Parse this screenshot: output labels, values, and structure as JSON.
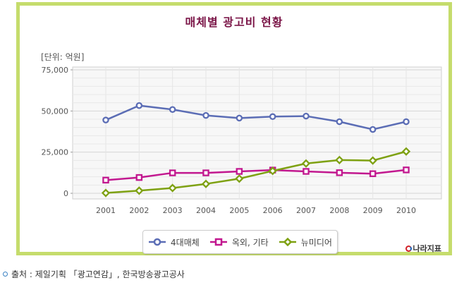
{
  "chart_data": {
    "type": "line",
    "title": "매체별 광고비 현황",
    "unit_label": "[단위: 억원]",
    "categories": [
      "2001",
      "2002",
      "2003",
      "2004",
      "2005",
      "2006",
      "2007",
      "2008",
      "2009",
      "2010"
    ],
    "y_ticks": [
      "75,000",
      "50,000",
      "25,000",
      "0"
    ],
    "ylim": [
      0,
      75000
    ],
    "grid": true,
    "legend_position": "bottom",
    "series": [
      {
        "name": "4대매체",
        "color": "#5b6db5",
        "marker": "circle",
        "values": [
          44500,
          53300,
          50900,
          47300,
          45700,
          46600,
          46900,
          43500,
          38800,
          43500
        ]
      },
      {
        "name": "옥외, 기타",
        "color": "#c2188f",
        "marker": "square",
        "values": [
          8000,
          9600,
          12400,
          12400,
          13300,
          14100,
          13300,
          12500,
          11900,
          14200
        ]
      },
      {
        "name": "뉴미디어",
        "color": "#7ea112",
        "marker": "diamond",
        "values": [
          200,
          1600,
          3200,
          5700,
          8900,
          13600,
          18100,
          20200,
          19900,
          25400
        ]
      }
    ]
  },
  "branding": {
    "logo_text": "나라지표"
  },
  "source": {
    "text": "출처 : 제일기획 「광고연감」, 한국방송광고공사"
  }
}
